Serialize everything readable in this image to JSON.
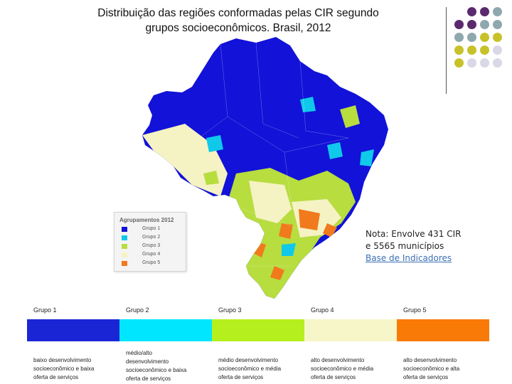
{
  "title_line1": "Distribuição das regiões conformadas pelas CIR segundo",
  "title_line2": "grupos socioeconômicos. Brasil, 2012",
  "map_legend": {
    "title": "Agrupamentos 2012",
    "items": [
      {
        "label": "Grupo 1",
        "color": "#1212d8"
      },
      {
        "label": "Grupo 2",
        "color": "#10c9ea"
      },
      {
        "label": "Grupo 3",
        "color": "#b7dd3f"
      },
      {
        "label": "Grupo 4",
        "color": "#f5f2c3"
      },
      {
        "label": "Grupo 5",
        "color": "#f07a1c"
      }
    ]
  },
  "note": {
    "line1": "Nota: Envolve 431 CIR",
    "line2": "e 5565 municípios",
    "link": "Base de Indicadores"
  },
  "groups": [
    {
      "name": "Grupo 1",
      "color": "#1a26d6",
      "desc1": "baixo desenvolvimento",
      "desc2": "socioeconômico e baixa",
      "desc3": "oferta de serviços",
      "desc4": ""
    },
    {
      "name": "Grupo 2",
      "color": "#00e6ff",
      "desc1": "médio/alto",
      "desc2": "desenvolvimento",
      "desc3": "socioeconômico e baixa",
      "desc4": "oferta de serviços"
    },
    {
      "name": "Grupo 3",
      "color": "#b6ef1e",
      "desc1": "médio desenvolvimento",
      "desc2": "socioeconômico e média",
      "desc3": "oferta de serviços",
      "desc4": ""
    },
    {
      "name": "Grupo 4",
      "color": "#f7f6c8",
      "desc1": "alto desenvolvimento",
      "desc2": "socioeconômico e média",
      "desc3": "oferta de serviços",
      "desc4": ""
    },
    {
      "name": "Grupo 5",
      "color": "#f97a06",
      "desc1": "alto desenvolvimento",
      "desc2": "socioeconômico e alta",
      "desc3": "oferta de serviços",
      "desc4": ""
    }
  ],
  "decor_dots": [
    "#5b2a6e",
    "#5b2a6e",
    "#8fa8ad",
    "#5b2a6e",
    "#5b2a6e",
    "#8fa8ad",
    "#8fa8ad",
    "#8fa8ad",
    "#8fa8ad",
    "#c7c22a",
    "#c7c22a",
    "#c7c22a",
    "#c7c22a",
    "#c7c22a",
    "#d8d8e6",
    "#c7c22a",
    "#d8d8e6",
    "#d8d8e6",
    "#d8d8e6"
  ]
}
